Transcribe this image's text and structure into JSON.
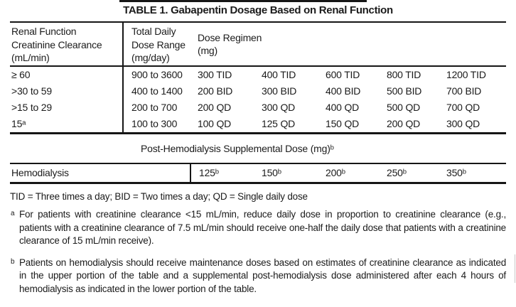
{
  "title": "TABLE 1. Gabapentin Dosage Based on Renal Function",
  "table": {
    "headers": {
      "renal": "Renal Function\nCreatinine Clearance\n(mL/min)",
      "dose_range": "Total Daily\nDose Range\n(mg/day)",
      "regimen": "Dose Regimen\n(mg)"
    },
    "rows": [
      {
        "renal": "≥ 60",
        "dose_range": "900 to 3600",
        "regimens": [
          "300 TID",
          "400 TID",
          "600 TID",
          "800 TID",
          "1200 TID"
        ]
      },
      {
        "renal": ">30 to 59",
        "dose_range": "400 to 1400",
        "regimens": [
          "200 BID",
          "300 BID",
          "400 BID",
          "500 BID",
          "700 BID"
        ]
      },
      {
        "renal": ">15 to 29",
        "dose_range": "200 to 700",
        "regimens": [
          "200 QD",
          "300 QD",
          "400 QD",
          "500 QD",
          "700 QD"
        ]
      },
      {
        "renal": "15ᵃ",
        "dose_range": "100 to 300",
        "regimens": [
          "100 QD",
          "125 QD",
          "150 QD",
          "200 QD",
          "300 QD"
        ]
      }
    ]
  },
  "hemodialysis": {
    "section_header": "Post-Hemodialysis Supplemental Dose (mg)ᵇ",
    "row_label": "Hemodialysis",
    "values": [
      "125ᵇ",
      "150ᵇ",
      "200ᵇ",
      "250ᵇ",
      "350ᵇ"
    ]
  },
  "footnotes": {
    "abbreviations": "TID = Three times a day; BID = Two times a day; QD = Single daily dose",
    "a": {
      "marker": "a",
      "text": "For patients with creatinine clearance <15 mL/min, reduce daily dose in proportion to creatinine clearance (e.g., patients with a creatinine clearance of 7.5 mL/min should receive one-half the daily dose that patients with a creatinine clearance of 15 mL/min receive)."
    },
    "b": {
      "marker": "b",
      "text": "Patients on hemodialysis should receive maintenance doses based on estimates of creatinine clearance as indicated in the upper portion of the table and a supplemental post-hemodialysis dose administered after each 4 hours of hemodialysis as indicated in the lower portion of the table."
    }
  }
}
